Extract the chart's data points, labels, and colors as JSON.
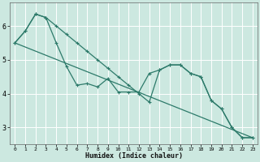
{
  "xlabel": "Humidex (Indice chaleur)",
  "background_color": "#cce8e0",
  "grid_color": "#ffffff",
  "line_color": "#2d7a6a",
  "xlim": [
    -0.5,
    23.5
  ],
  "ylim": [
    2.5,
    6.7
  ],
  "yticks": [
    3,
    4,
    5,
    6
  ],
  "xticks": [
    0,
    1,
    2,
    3,
    4,
    5,
    6,
    7,
    8,
    9,
    10,
    11,
    12,
    13,
    14,
    15,
    16,
    17,
    18,
    19,
    20,
    21,
    22,
    23
  ],
  "series1_x": [
    0,
    1,
    2,
    3,
    4,
    5,
    6,
    7,
    8,
    9,
    10,
    11,
    12,
    13,
    14,
    15,
    16,
    17,
    18,
    19,
    20,
    21,
    22,
    23
  ],
  "series1_y": [
    5.5,
    5.85,
    6.35,
    6.25,
    5.5,
    4.8,
    4.25,
    4.3,
    4.2,
    4.45,
    4.05,
    4.05,
    4.05,
    4.6,
    4.7,
    4.85,
    4.85,
    4.6,
    4.5,
    3.8,
    3.55,
    3.0,
    2.7,
    2.7
  ],
  "series2_x": [
    0,
    1,
    2,
    3,
    4,
    5,
    6,
    7,
    8,
    9,
    10,
    11,
    12,
    13,
    14,
    15,
    16,
    17,
    18,
    19,
    20,
    21,
    22,
    23
  ],
  "series2_y": [
    5.5,
    5.85,
    6.35,
    6.25,
    6.0,
    5.75,
    5.5,
    5.25,
    5.0,
    4.75,
    4.5,
    4.25,
    4.0,
    3.75,
    4.7,
    4.85,
    4.85,
    4.6,
    4.5,
    3.8,
    3.55,
    3.0,
    2.7,
    2.7
  ],
  "series3_x": [
    0,
    23
  ],
  "series3_y": [
    5.5,
    2.7
  ],
  "marker_size": 3.5,
  "line_width": 0.9
}
